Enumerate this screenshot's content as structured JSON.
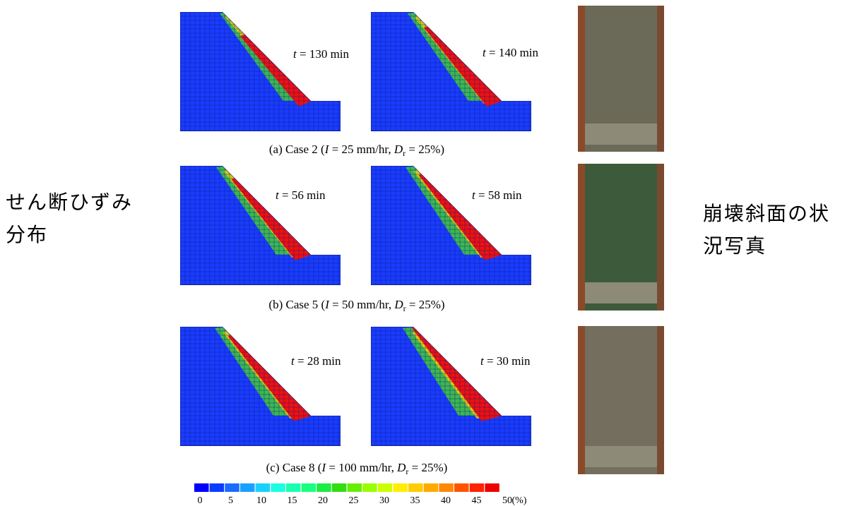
{
  "left_label": [
    "せん断ひずみ",
    "分布"
  ],
  "right_label": [
    "崩壊斜面の状",
    "況写真"
  ],
  "panels": [
    {
      "caption": {
        "prefix": "(a) Case 2 (",
        "i": "I",
        "mid": " = 25 mm/hr, ",
        "d": "D",
        "sub": "r",
        "suffix": " = 25%)"
      },
      "times": [
        {
          "t": "t",
          "rest": " = 130 min"
        },
        {
          "t": "t",
          "rest": " = 140 min"
        }
      ]
    },
    {
      "caption": {
        "prefix": "(b) Case 5 (",
        "i": "I",
        "mid": " = 50 mm/hr, ",
        "d": "D",
        "sub": "r",
        "suffix": " = 25%)"
      },
      "times": [
        {
          "t": "t",
          "rest": " = 56 min"
        },
        {
          "t": "t",
          "rest": " = 58 min"
        }
      ]
    },
    {
      "caption": {
        "prefix": "(c) Case 8 (",
        "i": "I",
        "mid": " = 100 mm/hr, ",
        "d": "D",
        "sub": "r",
        "suffix": " = 25%)"
      },
      "times": [
        {
          "t": "t",
          "rest": " = 28 min"
        },
        {
          "t": "t",
          "rest": " = 30 min"
        }
      ]
    }
  ],
  "colorbar": {
    "ticks": [
      0,
      5,
      10,
      15,
      20,
      25,
      30,
      35,
      40,
      45,
      50
    ],
    "unit": "(%)"
  }
}
